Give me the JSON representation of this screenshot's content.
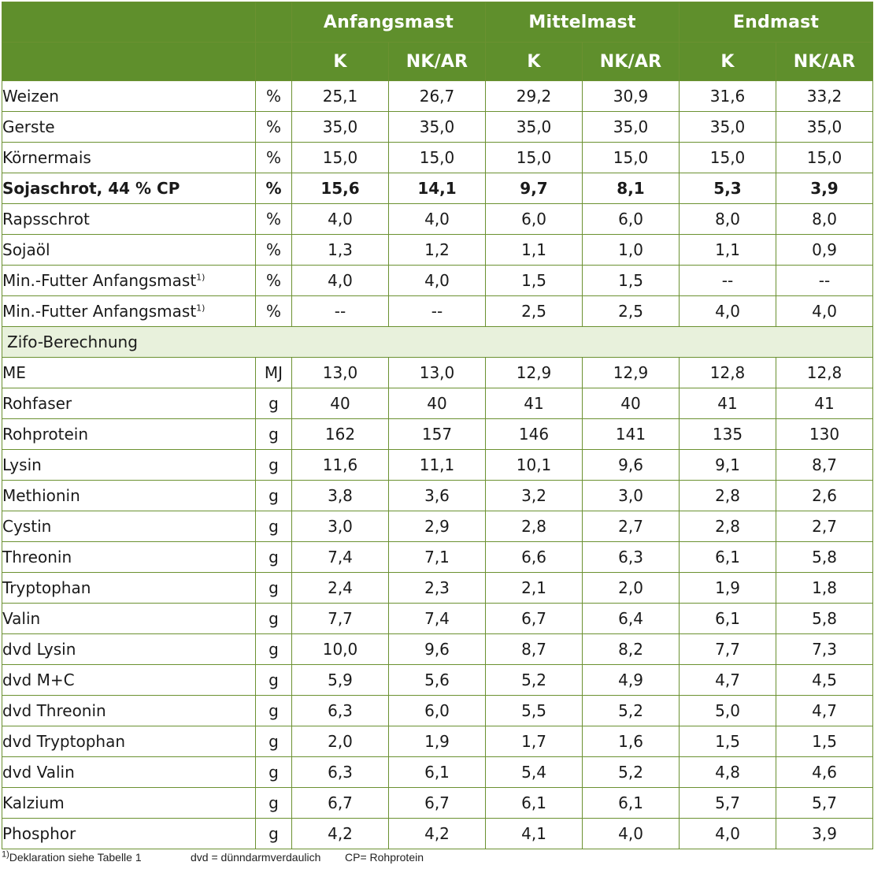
{
  "header": {
    "groups": [
      "Anfangsmast",
      "Mittelmast",
      "Endmast"
    ],
    "subcolumns": [
      "K",
      "NK/AR",
      "K",
      "NK/AR",
      "K",
      "NK/AR"
    ]
  },
  "rows_a": [
    {
      "name": "Weizen",
      "unit": "%",
      "bold": false,
      "values": [
        "25,1",
        "26,7",
        "29,2",
        "30,9",
        "31,6",
        "33,2"
      ]
    },
    {
      "name": "Gerste",
      "unit": "%",
      "bold": false,
      "values": [
        "35,0",
        "35,0",
        "35,0",
        "35,0",
        "35,0",
        "35,0"
      ]
    },
    {
      "name": "Körnermais",
      "unit": "%",
      "bold": false,
      "values": [
        "15,0",
        "15,0",
        "15,0",
        "15,0",
        "15,0",
        "15,0"
      ]
    },
    {
      "name": "Sojaschrot, 44 % CP",
      "unit": "%",
      "bold": true,
      "values": [
        "15,6",
        "14,1",
        "9,7",
        "8,1",
        "5,3",
        "3,9"
      ]
    },
    {
      "name": "Rapsschrot",
      "unit": "%",
      "bold": false,
      "values": [
        "4,0",
        "4,0",
        "6,0",
        "6,0",
        "8,0",
        "8,0"
      ]
    },
    {
      "name": "Sojaöl",
      "unit": "%",
      "bold": false,
      "values": [
        "1,3",
        "1,2",
        "1,1",
        "1,0",
        "1,1",
        "0,9"
      ]
    },
    {
      "name": "Min.-Futter Anfangsmast",
      "sup": "1)",
      "unit": "%",
      "bold": false,
      "values": [
        "4,0",
        "4,0",
        "1,5",
        "1,5",
        "--",
        "--"
      ]
    },
    {
      "name": "Min.-Futter Anfangsmast",
      "sup": "1)",
      "unit": "%",
      "bold": false,
      "values": [
        "--",
        "--",
        "2,5",
        "2,5",
        "4,0",
        "4,0"
      ]
    }
  ],
  "section_label": "Zifo-Berechnung",
  "rows_b": [
    {
      "name": "ME",
      "unit": "MJ",
      "values": [
        "13,0",
        "13,0",
        "12,9",
        "12,9",
        "12,8",
        "12,8"
      ]
    },
    {
      "name": "Rohfaser",
      "unit": "g",
      "values": [
        "40",
        "40",
        "41",
        "40",
        "41",
        "41"
      ]
    },
    {
      "name": "Rohprotein",
      "unit": "g",
      "values": [
        "162",
        "157",
        "146",
        "141",
        "135",
        "130"
      ]
    },
    {
      "name": "Lysin",
      "unit": "g",
      "values": [
        "11,6",
        "11,1",
        "10,1",
        "9,6",
        "9,1",
        "8,7"
      ]
    },
    {
      "name": "Methionin",
      "unit": "g",
      "values": [
        "3,8",
        "3,6",
        "3,2",
        "3,0",
        "2,8",
        "2,6"
      ]
    },
    {
      "name": "Cystin",
      "unit": "g",
      "values": [
        "3,0",
        "2,9",
        "2,8",
        "2,7",
        "2,8",
        "2,7"
      ]
    },
    {
      "name": "Threonin",
      "unit": "g",
      "values": [
        "7,4",
        "7,1",
        "6,6",
        "6,3",
        "6,1",
        "5,8"
      ]
    },
    {
      "name": "Tryptophan",
      "unit": "g",
      "values": [
        "2,4",
        "2,3",
        "2,1",
        "2,0",
        "1,9",
        "1,8"
      ]
    },
    {
      "name": "Valin",
      "unit": "g",
      "values": [
        "7,7",
        "7,4",
        "6,7",
        "6,4",
        "6,1",
        "5,8"
      ]
    },
    {
      "name": "dvd Lysin",
      "unit": "g",
      "values": [
        "10,0",
        "9,6",
        "8,7",
        "8,2",
        "7,7",
        "7,3"
      ]
    },
    {
      "name": "dvd M+C",
      "unit": "g",
      "values": [
        "5,9",
        "5,6",
        "5,2",
        "4,9",
        "4,7",
        "4,5"
      ]
    },
    {
      "name": "dvd Threonin",
      "unit": "g",
      "values": [
        "6,3",
        "6,0",
        "5,5",
        "5,2",
        "5,0",
        "4,7"
      ]
    },
    {
      "name": "dvd Tryptophan",
      "unit": "g",
      "values": [
        "2,0",
        "1,9",
        "1,7",
        "1,6",
        "1,5",
        "1,5"
      ]
    },
    {
      "name": "dvd Valin",
      "unit": "g",
      "values": [
        "6,3",
        "6,1",
        "5,4",
        "5,2",
        "4,8",
        "4,6"
      ]
    },
    {
      "name": "Kalzium",
      "unit": "g",
      "values": [
        "6,7",
        "6,7",
        "6,1",
        "6,1",
        "5,7",
        "5,7"
      ]
    },
    {
      "name": "Phosphor",
      "unit": "g",
      "values": [
        "4,2",
        "4,2",
        "4,1",
        "4,0",
        "4,0",
        "3,9"
      ]
    }
  ],
  "footnote": {
    "marker": "1)",
    "note1": " Deklaration siehe Tabelle 1",
    "note2": "dvd = dünndarmverdaulich",
    "note3": "CP= Rohprotein"
  },
  "colors": {
    "header_bg": "#5f8f2c",
    "border": "#6b9131",
    "section_bg": "#e8f1dc"
  }
}
